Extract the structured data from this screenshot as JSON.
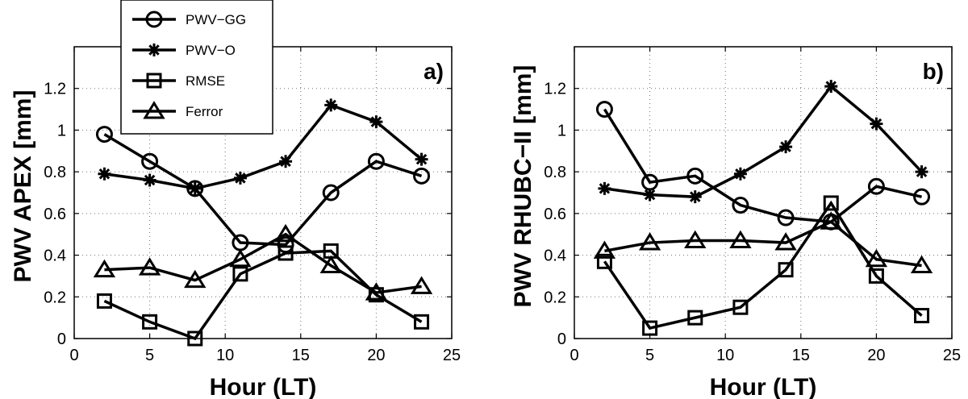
{
  "chart_data": [
    {
      "type": "line",
      "panel_tag": "a)",
      "xlabel": "Hour (LT)",
      "ylabel": "PWV APEX [mm]",
      "xlim": [
        0,
        25
      ],
      "ylim": [
        0,
        1.4
      ],
      "xticks": [
        "0",
        "5",
        "10",
        "15",
        "20",
        "25"
      ],
      "yticks": [
        "0",
        "0.2",
        "0.4",
        "0.6",
        "0.8",
        "1",
        "1.2"
      ],
      "grid": true,
      "legend": "outside-top-left",
      "x": [
        2,
        5,
        8,
        11,
        14,
        17,
        20,
        23
      ],
      "series": [
        {
          "name": "PWV−GG",
          "marker": "circle",
          "values": [
            0.98,
            0.85,
            0.72,
            0.46,
            0.45,
            0.7,
            0.85,
            0.78
          ]
        },
        {
          "name": "PWV−O",
          "marker": "star",
          "values": [
            0.79,
            0.76,
            0.72,
            0.77,
            0.85,
            1.12,
            1.04,
            0.86
          ]
        },
        {
          "name": "RMSE",
          "marker": "square",
          "values": [
            0.18,
            0.08,
            0.0,
            0.31,
            0.41,
            0.42,
            0.21,
            0.08
          ]
        },
        {
          "name": "Ferror",
          "marker": "triangle",
          "values": [
            0.33,
            0.34,
            0.28,
            0.38,
            0.5,
            0.35,
            0.22,
            0.25
          ]
        }
      ]
    },
    {
      "type": "line",
      "panel_tag": "b)",
      "xlabel": "Hour (LT)",
      "ylabel": "PWV RHUBC−II [mm]",
      "xlim": [
        0,
        25
      ],
      "ylim": [
        0,
        1.4
      ],
      "xticks": [
        "0",
        "5",
        "10",
        "15",
        "20",
        "25"
      ],
      "yticks": [
        "0",
        "0.2",
        "0.4",
        "0.6",
        "0.8",
        "1",
        "1.2"
      ],
      "grid": true,
      "x": [
        2,
        5,
        8,
        11,
        14,
        17,
        20,
        23
      ],
      "series": [
        {
          "name": "PWV−GG",
          "marker": "circle",
          "values": [
            1.1,
            0.75,
            0.78,
            0.64,
            0.58,
            0.56,
            0.73,
            0.68
          ]
        },
        {
          "name": "PWV−O",
          "marker": "star",
          "values": [
            0.72,
            0.69,
            0.68,
            0.79,
            0.92,
            1.21,
            1.03,
            0.8
          ]
        },
        {
          "name": "RMSE",
          "marker": "square",
          "values": [
            0.37,
            0.05,
            0.1,
            0.15,
            0.33,
            0.65,
            0.3,
            0.11
          ]
        },
        {
          "name": "Ferror",
          "marker": "triangle",
          "values": [
            0.42,
            0.46,
            0.47,
            0.47,
            0.46,
            0.56,
            0.38,
            0.35
          ]
        }
      ]
    }
  ]
}
